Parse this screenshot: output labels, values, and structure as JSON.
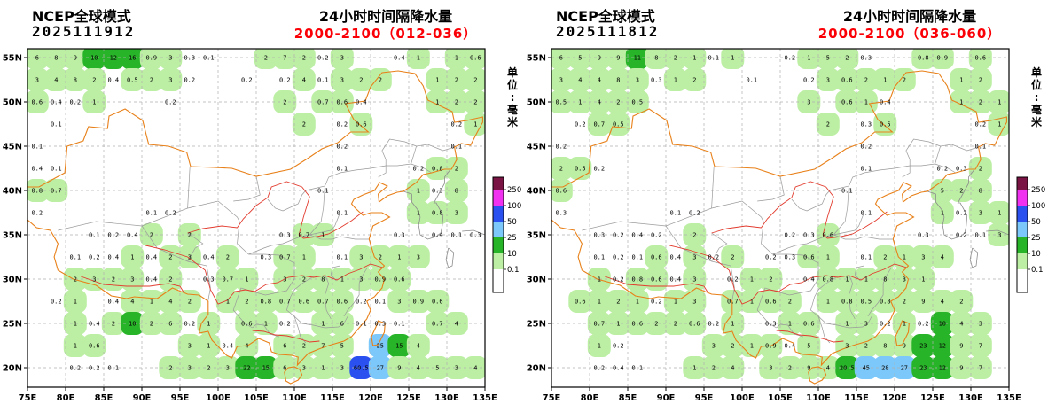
{
  "axes": {
    "x_labels": [
      "75E",
      "80E",
      "85E",
      "90E",
      "95E",
      "100E",
      "105E",
      "110E",
      "115E",
      "120E",
      "125E",
      "130E",
      "135E"
    ],
    "y_labels": [
      "55N",
      "50N",
      "45N",
      "40N",
      "35N",
      "30N",
      "25N",
      "20N"
    ]
  },
  "colorbar": {
    "boundary_labels": [
      "250",
      "100",
      "50",
      "25",
      "10",
      "0.1"
    ],
    "colors_top_to_bottom": [
      "#7a1445",
      "#f032f0",
      "#2b50f0",
      "#7cc8fa",
      "#28b428",
      "#bcefa4",
      "#ffffff"
    ],
    "accent_red": "#fa0006"
  },
  "chart_data": [
    {
      "type": "heatmap",
      "model_label": "NCEP全球模式",
      "init_time": "2025111912",
      "title": "24小时时间隔降水量",
      "valid_period": "2000-2100（012-036）",
      "unit_label": "单位:毫米",
      "lon_range": [
        75,
        135
      ],
      "lat_range": [
        18,
        56
      ],
      "legend_levels_mm": [
        0.1,
        10,
        25,
        50,
        100,
        250
      ],
      "grid": {
        "lon_start": 76.25,
        "lon_step": 2.5,
        "lat_start": 55,
        "lat_step": -2.5,
        "values": [
          [
            "6",
            "8",
            "9",
            "10",
            "12",
            "16",
            "0.9",
            "3",
            "0.3",
            "0.1",
            "",
            "",
            "2",
            "7",
            "2",
            "0.2",
            "3",
            "",
            "",
            "0.4",
            "1",
            "",
            "1",
            "0.6"
          ],
          [
            "3",
            "4",
            "8",
            "2",
            "0.4",
            "0.5",
            "2",
            "3",
            "0.2",
            "",
            "",
            "0.2",
            "",
            "0.2",
            "4",
            "0.1",
            "3",
            "2",
            "2",
            "",
            "",
            "1",
            "2",
            "2"
          ],
          [
            "0.6",
            "0.4",
            "0.2",
            "1",
            "",
            "",
            "",
            "0.2",
            "",
            "",
            "",
            "",
            "",
            "2",
            "",
            "0.7",
            "0.6",
            "0.4",
            "",
            "",
            "",
            "1",
            "2",
            "2"
          ],
          [
            "",
            "0.1",
            "",
            "",
            "",
            "",
            "",
            "",
            "",
            "",
            "",
            "",
            "",
            "",
            "2",
            "",
            "0.2",
            "0.6",
            "",
            "",
            "",
            "",
            "0.2",
            "1"
          ],
          [
            "0.1",
            "",
            "",
            "",
            "",
            "",
            "",
            "",
            "",
            "",
            "",
            "",
            "",
            "",
            "",
            "",
            "0.2",
            "",
            "",
            "",
            "",
            "",
            "0.1",
            ""
          ],
          [
            "0.4",
            "0.1",
            "",
            "",
            "",
            "",
            "",
            "",
            "",
            "",
            "",
            "",
            "",
            "",
            "",
            "",
            "0.1",
            "",
            "",
            "",
            "0.2",
            "0.8",
            "2",
            ""
          ],
          [
            "0.8",
            "0.7",
            "",
            "",
            "",
            "",
            "",
            "",
            "",
            "",
            "",
            "",
            "",
            "",
            "",
            "0.1",
            "",
            "",
            "",
            "",
            "1",
            "0.3",
            "8",
            ""
          ],
          [
            "0.2",
            "",
            "",
            "",
            "",
            "",
            "0.1",
            "0.2",
            "",
            "",
            "",
            "",
            "",
            "",
            "",
            "",
            "0.1",
            "",
            "",
            "",
            "1",
            "0.8",
            "3",
            ""
          ],
          [
            "",
            "",
            "",
            "0.1",
            "0.2",
            "0.4",
            "2",
            "",
            "2",
            "",
            "",
            "",
            "",
            "0.3",
            "0.7",
            "1",
            "",
            "",
            "",
            "0.3",
            "",
            "0.4",
            "0.1",
            "0.3"
          ],
          [
            "",
            "",
            "0.1",
            "0.2",
            "0.4",
            "1",
            "0.4",
            "2",
            "3",
            "0.4",
            "2",
            "",
            "0.3",
            "0.7",
            "1",
            "",
            "0.1",
            "3",
            "2",
            "1",
            "3",
            "",
            "",
            ""
          ],
          [
            "",
            "",
            "2",
            "3",
            "2",
            "3",
            "0.4",
            "2",
            "",
            "0.3",
            "0.7",
            "1",
            "",
            "3",
            "2",
            "8",
            "1",
            "3",
            "0.9",
            "0.6",
            "",
            "",
            "",
            ""
          ],
          [
            "",
            "0.2",
            "1",
            "",
            "0.4",
            "4",
            "1",
            "4",
            "2",
            "",
            "1",
            "2",
            "0.8",
            "0.7",
            "0.6",
            "0.7",
            "0.6",
            "0.2",
            "0.1",
            "3",
            "0.9",
            "0.6",
            "",
            ""
          ],
          [
            "",
            "",
            "1",
            "0.4",
            "2",
            "10",
            "2",
            "6",
            "0.2",
            "1",
            "",
            "0.6",
            "1",
            "0.2",
            "",
            "1",
            "6",
            "0.1",
            "0.3",
            "0.1",
            "",
            "0.7",
            "4",
            ""
          ],
          [
            "",
            "",
            "1",
            "0.6",
            "",
            "",
            "",
            "",
            "3",
            "1",
            "0.4",
            "4",
            "",
            "6",
            "2",
            "7",
            "5",
            "",
            "25",
            "15",
            "4",
            "",
            "",
            ""
          ],
          [
            "",
            "",
            "0.2",
            "0.2",
            "0.1",
            "",
            "",
            "2",
            "3",
            "2",
            "3",
            "22",
            "15",
            "6",
            "3",
            "1",
            "3",
            "60.5",
            "27",
            "9",
            "4",
            "5",
            "3",
            "4"
          ]
        ]
      }
    },
    {
      "type": "heatmap",
      "model_label": "NCEP全球模式",
      "init_time": "2025111812",
      "title": "24小时时间隔降水量",
      "valid_period": "2000-2100（036-060）",
      "unit_label": "单位:毫米",
      "lon_range": [
        75,
        135
      ],
      "lat_range": [
        18,
        56
      ],
      "legend_levels_mm": [
        0.1,
        10,
        25,
        50,
        100,
        250
      ],
      "grid": {
        "lon_start": 76.25,
        "lon_step": 2.5,
        "lat_start": 55,
        "lat_step": -2.5,
        "values": [
          [
            "6",
            "5",
            "9",
            "9",
            "11",
            "8",
            "2",
            "1",
            "0.1",
            "1",
            "",
            "",
            "0.2",
            "1",
            "5",
            "2",
            "0.3",
            "",
            "",
            "0.8",
            "0.9",
            "",
            "0.6",
            ""
          ],
          [
            "3",
            "4",
            "4",
            "8",
            "3",
            "0.3",
            "1",
            "2",
            "",
            "",
            "0.1",
            "",
            "",
            "0.2",
            "3",
            "0.6",
            "2",
            "1",
            "2",
            "",
            "",
            "1",
            "2",
            ""
          ],
          [
            "0.5",
            "1",
            "4",
            "2",
            "0.5",
            "",
            "",
            "",
            "",
            "",
            "",
            "",
            "",
            "3",
            "",
            "0.6",
            "1",
            "0.4",
            "",
            "",
            "",
            "1",
            "2",
            "1"
          ],
          [
            "",
            "0.2",
            "0.7",
            "0.5",
            "",
            "",
            "",
            "",
            "",
            "",
            "",
            "",
            "",
            "",
            "2",
            "",
            "0.3",
            "0.5",
            "",
            "",
            "",
            "",
            "0.2",
            "1"
          ],
          [
            "0.2",
            "",
            "",
            "",
            "",
            "",
            "",
            "",
            "",
            "",
            "",
            "",
            "",
            "",
            "",
            "",
            "0.2",
            "",
            "",
            "",
            "",
            "",
            "0.1",
            ""
          ],
          [
            "2",
            "0.5",
            "0.2",
            "",
            "",
            "",
            "",
            "",
            "",
            "",
            "",
            "",
            "",
            "",
            "",
            "",
            "0.1",
            "",
            "",
            "",
            "0.2",
            "0.3",
            "2",
            ""
          ],
          [
            "0.6",
            "",
            "",
            "",
            "",
            "",
            "",
            "",
            "",
            "",
            "",
            "",
            "",
            "",
            "",
            "0.1",
            "",
            "",
            "",
            "",
            "5",
            "2",
            "8",
            ""
          ],
          [
            "0.3",
            "",
            "",
            "",
            "",
            "",
            "0.1",
            "0.2",
            "",
            "",
            "",
            "",
            "",
            "",
            "",
            "",
            "0.1",
            "",
            "",
            "",
            "1",
            "0.2",
            "3",
            "1"
          ],
          [
            "",
            "",
            "0.3",
            "0.2",
            "0.4",
            "0.2",
            "",
            "2",
            "",
            "",
            "",
            "",
            "0.2",
            "0.3",
            "0.6",
            "",
            "",
            "",
            "",
            "0.3",
            "",
            "0.2",
            "0.1",
            "3"
          ],
          [
            "",
            "",
            "0.1",
            "0.2",
            "0.1",
            "0.6",
            "0.4",
            "3",
            "0.2",
            "2",
            "",
            "0.2",
            "0.3",
            "0.6",
            "1",
            "",
            "0.1",
            "2",
            "1",
            "3",
            "4",
            "",
            "",
            ""
          ],
          [
            "",
            "",
            "1",
            "0.2",
            "0.8",
            "0.6",
            "0.4",
            "3",
            "",
            "0.2",
            "1",
            "2",
            "",
            "0.4",
            "0.8",
            "1",
            "1",
            "8",
            "3",
            "1",
            "",
            "",
            "",
            ""
          ],
          [
            "",
            "0.6",
            "1",
            "2",
            "1",
            "0.2",
            "1",
            "3",
            "",
            "0.7",
            "1",
            "0.6",
            "2",
            "",
            "1",
            "0.8",
            "0.5",
            "0.8",
            "2",
            "9",
            "4",
            "2",
            "",
            ""
          ],
          [
            "",
            "",
            "0.7",
            "1",
            "0.6",
            "2",
            "2",
            "0.6",
            "0.2",
            "1",
            "",
            "0.3",
            "1",
            "0.6",
            "",
            "1",
            "3",
            "0.2",
            "1",
            "0.2",
            "10",
            "4",
            "3",
            ""
          ],
          [
            "",
            "",
            "1",
            "0.2",
            "",
            "",
            "",
            "",
            "3",
            "2",
            "1",
            "0.9",
            "0.4",
            "5",
            "",
            "3",
            "2",
            "8",
            "9",
            "23",
            "12",
            "9",
            "7",
            ""
          ],
          [
            "",
            "",
            "0.2",
            "0.4",
            "0.1",
            "",
            "",
            "1",
            "2",
            "4",
            "",
            "3",
            "2",
            "9",
            "4",
            "20.5",
            "45",
            "28",
            "27",
            "23",
            "12",
            "9",
            "7",
            ""
          ]
        ]
      }
    }
  ]
}
